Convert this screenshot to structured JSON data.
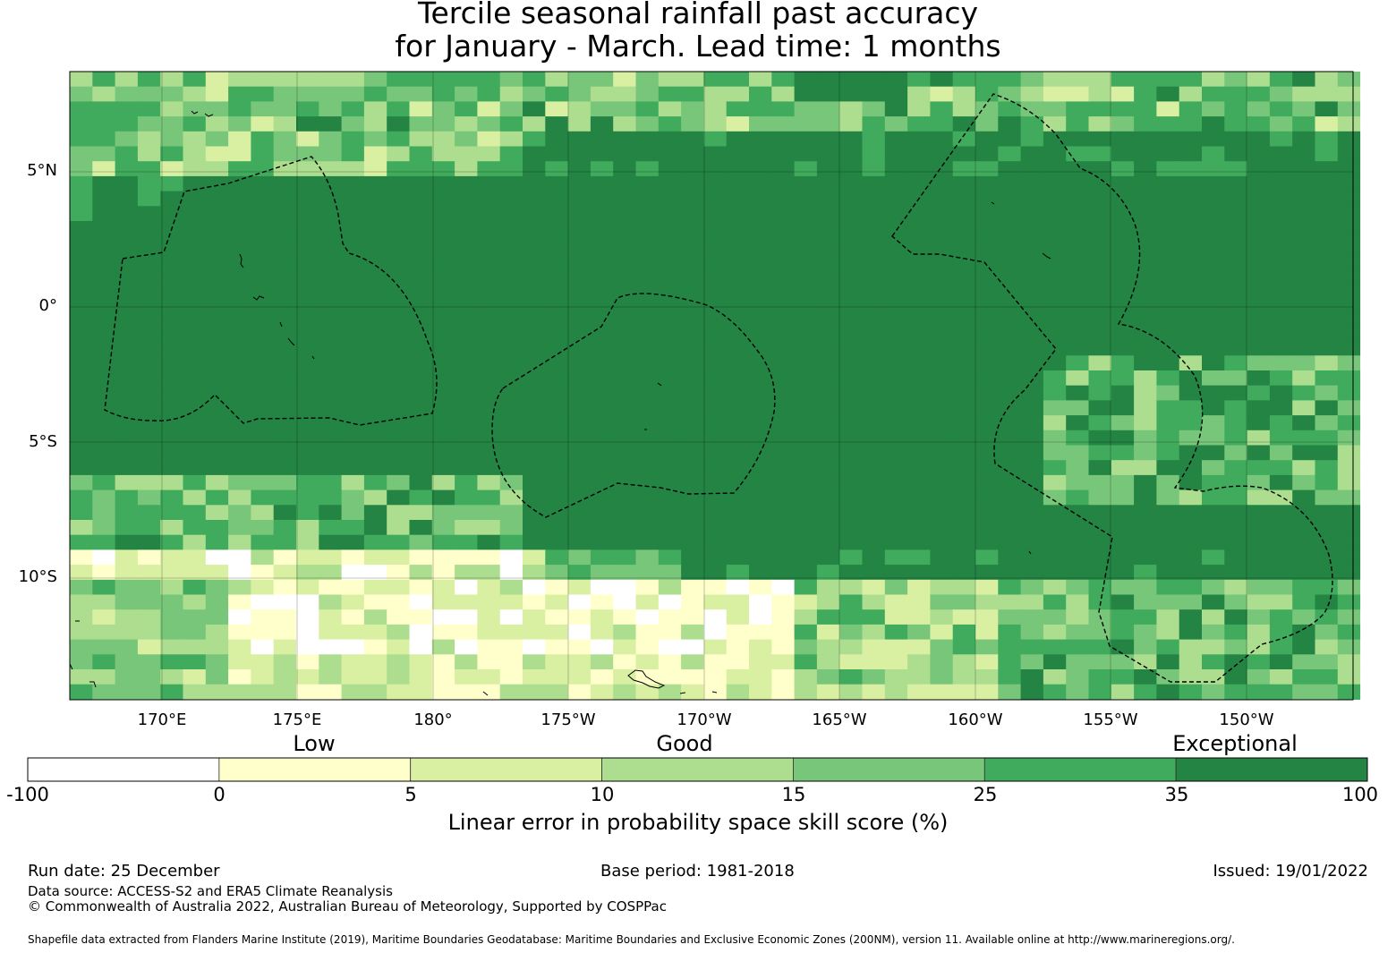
{
  "title": {
    "line1": "Tercile seasonal rainfall past accuracy",
    "line2": "for January - March. Lead time: 1 months"
  },
  "map": {
    "lat_labels": [
      "5°N",
      "0°",
      "5°S",
      "10°S"
    ],
    "lon_labels": [
      "170°E",
      "175°E",
      "180°",
      "175°W",
      "170°W",
      "165°W",
      "160°W",
      "155°W",
      "150°W"
    ],
    "extent": {
      "lon_min": 166.6,
      "lon_max": 213.9,
      "lat_min": -14.6,
      "lat_max": 8.6
    },
    "gridlines": true,
    "coastlines": true,
    "eez_boundaries_dashed": true,
    "predominant_skill_category": "35 to 100"
  },
  "legend": {
    "category_labels": {
      "low": "Low",
      "good": "Good",
      "exceptional": "Exceptional"
    },
    "bins": [
      {
        "lo": "-100",
        "hi": "0",
        "color": "#ffffff"
      },
      {
        "lo": "0",
        "hi": "5",
        "color": "#ffffcc"
      },
      {
        "lo": "5",
        "hi": "10",
        "color": "#d9f0a3"
      },
      {
        "lo": "10",
        "hi": "15",
        "color": "#addd8e"
      },
      {
        "lo": "15",
        "hi": "25",
        "color": "#78c679"
      },
      {
        "lo": "25",
        "hi": "35",
        "color": "#41ab5d"
      },
      {
        "lo": "35",
        "hi": "100",
        "color": "#238443"
      }
    ],
    "tick_labels": [
      "-100",
      "0",
      "5",
      "10",
      "15",
      "25",
      "35",
      "100"
    ],
    "title": "Linear error in probability space skill score (%)"
  },
  "footer": {
    "run_date": "Run date: 25 December",
    "base_period": "Base period: 1981-2018",
    "issued": "Issued: 19/01/2022",
    "data_source": "Data source: ACCESS-S2 and ERA5 Climate Reanalysis",
    "copyright": "© Commonwealth of Australia 2022, Australian Bureau of Meteorology, Supported by COSPPac",
    "shapefile": "Shapefile data extracted from Flanders Marine Institute (2019), Maritime Boundaries Geodatabase: Maritime Boundaries and Exclusive Economic Zones (200NM), version 11. Available online at http://www.marineregions.org/."
  }
}
